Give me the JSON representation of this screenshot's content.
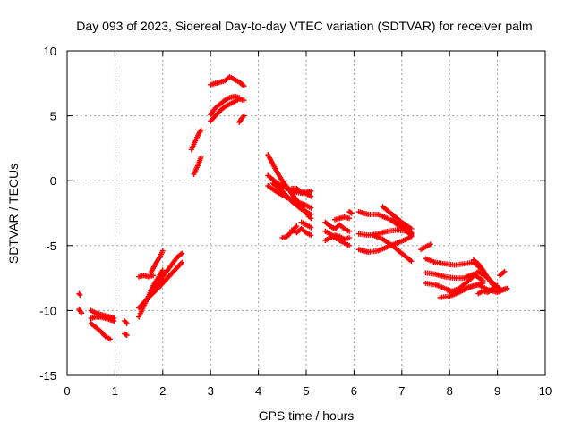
{
  "chart_data": {
    "type": "scatter",
    "title": "Day 093 of 2023, Sidereal Day-to-day VTEC variation (SDTVAR) for receiver palm",
    "xlabel": "GPS time / hours",
    "ylabel": "SDTVAR / TECUs",
    "xlim": [
      0,
      10
    ],
    "ylim": [
      -15,
      10
    ],
    "xticks": [
      0,
      1,
      2,
      3,
      4,
      5,
      6,
      7,
      8,
      9,
      10
    ],
    "yticks": [
      -15,
      -10,
      -5,
      0,
      5,
      10
    ],
    "grid": true,
    "marker": "plus",
    "color": "#ff0000",
    "tracks": [
      {
        "x": [
          0.25,
          0.27
        ],
        "y": [
          -8.7,
          -8.8
        ]
      },
      {
        "x": [
          0.25,
          0.3
        ],
        "y": [
          -9.9,
          -10.2
        ]
      },
      {
        "x": [
          0.5,
          0.6,
          0.7,
          0.8,
          0.9,
          0.98
        ],
        "y": [
          -10.0,
          -10.2,
          -10.3,
          -10.4,
          -10.5,
          -10.6
        ]
      },
      {
        "x": [
          0.5,
          0.6,
          0.7,
          0.8,
          0.9,
          0.98
        ],
        "y": [
          -10.6,
          -10.5,
          -10.5,
          -10.6,
          -10.7,
          -10.8
        ]
      },
      {
        "x": [
          0.5,
          0.6,
          0.7,
          0.8,
          0.9
        ],
        "y": [
          -11.0,
          -11.3,
          -11.6,
          -12.0,
          -12.2
        ]
      },
      {
        "x": [
          1.2,
          1.25
        ],
        "y": [
          -10.8,
          -11.0
        ]
      },
      {
        "x": [
          1.2,
          1.25
        ],
        "y": [
          -11.8,
          -11.9
        ]
      },
      {
        "x": [
          1.5,
          1.6,
          1.7,
          1.8,
          1.9,
          2.0
        ],
        "y": [
          -10.5,
          -9.7,
          -8.9,
          -8.1,
          -7.5,
          -6.9
        ]
      },
      {
        "x": [
          1.5,
          1.7,
          1.9,
          2.1,
          2.3,
          2.4
        ],
        "y": [
          -9.8,
          -9.0,
          -8.3,
          -7.5,
          -6.7,
          -6.3
        ]
      },
      {
        "x": [
          1.8,
          1.9,
          2.0,
          2.1,
          2.2,
          2.3,
          2.4
        ],
        "y": [
          -8.6,
          -8.0,
          -7.4,
          -6.9,
          -6.4,
          -5.9,
          -5.6
        ]
      },
      {
        "x": [
          1.5,
          1.6,
          1.7,
          1.8
        ],
        "y": [
          -7.4,
          -7.3,
          -7.4,
          -7.3
        ]
      },
      {
        "x": [
          1.75,
          1.85,
          1.95,
          2.0
        ],
        "y": [
          -7.1,
          -6.4,
          -5.8,
          -5.4
        ]
      },
      {
        "x": [
          2.6,
          2.65,
          2.7,
          2.75,
          2.8
        ],
        "y": [
          2.4,
          2.8,
          3.2,
          3.6,
          3.9
        ]
      },
      {
        "x": [
          2.65,
          2.7,
          2.75,
          2.8
        ],
        "y": [
          0.5,
          0.9,
          1.3,
          1.8
        ]
      },
      {
        "x": [
          3.0,
          3.1,
          3.2,
          3.3,
          3.4,
          3.5,
          3.6,
          3.7
        ],
        "y": [
          7.4,
          7.5,
          7.6,
          7.7,
          8.0,
          7.8,
          7.6,
          7.3
        ]
      },
      {
        "x": [
          3.0,
          3.1,
          3.2,
          3.3,
          3.4,
          3.5,
          3.6,
          3.7
        ],
        "y": [
          4.6,
          5.0,
          5.4,
          5.7,
          5.9,
          6.1,
          6.3,
          6.2
        ]
      },
      {
        "x": [
          3.0,
          3.1,
          3.2,
          3.3,
          3.4,
          3.5,
          3.6
        ],
        "y": [
          5.1,
          5.6,
          5.9,
          6.2,
          6.4,
          6.5,
          6.4
        ]
      },
      {
        "x": [
          3.6,
          3.65,
          3.7
        ],
        "y": [
          4.5,
          4.8,
          5.0
        ]
      },
      {
        "x": [
          4.2,
          4.3,
          4.4,
          4.5,
          4.6,
          4.7,
          4.8,
          4.9,
          5.0,
          5.1
        ],
        "y": [
          2.0,
          1.3,
          0.6,
          0.0,
          -0.5,
          -1.0,
          -1.5,
          -2.0,
          -2.5,
          -2.9
        ]
      },
      {
        "x": [
          4.2,
          4.4,
          4.6,
          4.8,
          5.0,
          5.1
        ],
        "y": [
          -0.4,
          -0.9,
          -1.3,
          -1.6,
          -1.9,
          -2.1
        ]
      },
      {
        "x": [
          4.2,
          4.4,
          4.6,
          4.8,
          5.0,
          5.1
        ],
        "y": [
          0.4,
          -0.2,
          -0.6,
          -0.9,
          -1.0,
          -1.2
        ]
      },
      {
        "x": [
          4.3,
          4.5,
          4.7,
          4.9,
          5.1
        ],
        "y": [
          -0.2,
          -0.8,
          -1.6,
          -2.2,
          -2.6
        ]
      },
      {
        "x": [
          4.7,
          4.8,
          4.9,
          5.0,
          5.1
        ],
        "y": [
          -0.6,
          -0.6,
          -0.9,
          -0.9,
          -0.8
        ]
      },
      {
        "x": [
          4.7,
          4.8,
          4.9,
          5.0,
          5.1
        ],
        "y": [
          -3.8,
          -4.0,
          -3.7,
          -4.0,
          -4.2
        ]
      },
      {
        "x": [
          4.9,
          5.0,
          5.1
        ],
        "y": [
          -3.2,
          -3.4,
          -3.6
        ]
      },
      {
        "x": [
          4.5,
          4.6,
          4.7,
          4.8
        ],
        "y": [
          -4.4,
          -4.3,
          -3.9,
          -3.5
        ]
      },
      {
        "x": [
          5.4,
          5.5,
          5.6,
          5.7,
          5.8,
          5.9
        ],
        "y": [
          -3.9,
          -4.1,
          -4.4,
          -4.6,
          -4.8,
          -5.0
        ]
      },
      {
        "x": [
          5.4,
          5.5,
          5.6,
          5.7,
          5.8,
          5.9
        ],
        "y": [
          -4.6,
          -4.4,
          -4.2,
          -4.3,
          -4.5,
          -4.4
        ]
      },
      {
        "x": [
          5.4,
          5.5,
          5.6,
          5.7,
          5.8,
          5.9
        ],
        "y": [
          -3.2,
          -3.5,
          -3.7,
          -3.4,
          -3.7,
          -3.9
        ]
      },
      {
        "x": [
          5.6,
          5.7,
          5.8,
          5.9
        ],
        "y": [
          -3.0,
          -2.9,
          -2.8,
          -2.9
        ]
      },
      {
        "x": [
          5.9,
          5.95
        ],
        "y": [
          -2.4,
          -2.5
        ]
      },
      {
        "x": [
          6.1,
          6.3,
          6.5,
          6.7,
          6.9,
          7.1,
          7.2
        ],
        "y": [
          -2.4,
          -2.6,
          -2.6,
          -2.9,
          -3.3,
          -3.7,
          -4.0
        ]
      },
      {
        "x": [
          6.1,
          6.3,
          6.5,
          6.7,
          6.9,
          7.1,
          7.2
        ],
        "y": [
          -4.1,
          -4.2,
          -4.1,
          -3.9,
          -3.8,
          -3.9,
          -4.2
        ]
      },
      {
        "x": [
          6.1,
          6.3,
          6.5,
          6.7,
          6.9,
          7.1,
          7.2
        ],
        "y": [
          -5.3,
          -5.5,
          -5.4,
          -5.1,
          -4.8,
          -4.5,
          -4.3
        ]
      },
      {
        "x": [
          6.4,
          6.6,
          6.8,
          7.0,
          7.2
        ],
        "y": [
          -4.2,
          -4.5,
          -5.0,
          -5.6,
          -6.2
        ]
      },
      {
        "x": [
          6.6,
          6.8,
          7.0,
          7.2
        ],
        "y": [
          -2.0,
          -2.6,
          -3.2,
          -3.7
        ]
      },
      {
        "x": [
          6.8,
          6.9,
          7.0,
          7.1,
          7.2
        ],
        "y": [
          -3.0,
          -3.4,
          -3.6,
          -3.9,
          -4.1
        ]
      },
      {
        "x": [
          7.4,
          7.5,
          7.6
        ],
        "y": [
          -5.3,
          -5.1,
          -4.9
        ]
      },
      {
        "x": [
          7.5,
          7.7,
          7.9,
          8.1,
          8.3,
          8.5,
          8.7
        ],
        "y": [
          -6.0,
          -6.3,
          -6.4,
          -6.5,
          -6.4,
          -6.3,
          -6.9
        ]
      },
      {
        "x": [
          7.5,
          7.7,
          7.9,
          8.1,
          8.3,
          8.5,
          8.7
        ],
        "y": [
          -7.1,
          -7.2,
          -7.4,
          -7.5,
          -7.5,
          -7.2,
          -7.7
        ]
      },
      {
        "x": [
          7.5,
          7.7,
          7.9,
          8.1,
          8.3,
          8.5,
          8.7
        ],
        "y": [
          -7.9,
          -8.0,
          -8.3,
          -8.6,
          -8.4,
          -8.1,
          -7.9
        ]
      },
      {
        "x": [
          7.8,
          8.0,
          8.2,
          8.4,
          8.6,
          8.8,
          9.0,
          9.2
        ],
        "y": [
          -9.0,
          -8.9,
          -8.6,
          -8.2,
          -8.0,
          -8.4,
          -8.6,
          -8.3
        ]
      },
      {
        "x": [
          8.0,
          8.2,
          8.4,
          8.6,
          8.8,
          9.0
        ],
        "y": [
          -8.6,
          -8.3,
          -7.7,
          -7.0,
          -7.5,
          -8.2
        ]
      },
      {
        "x": [
          8.5,
          8.6,
          8.7,
          8.8,
          8.9,
          9.0,
          9.1,
          9.2
        ],
        "y": [
          -6.1,
          -6.4,
          -6.9,
          -7.5,
          -8.0,
          -8.3,
          -8.4,
          -8.3
        ]
      },
      {
        "x": [
          8.6,
          8.7,
          8.8,
          8.9,
          9.0
        ],
        "y": [
          -8.7,
          -8.5,
          -8.6,
          -8.3,
          -8.1
        ]
      },
      {
        "x": [
          9.05,
          9.15
        ],
        "y": [
          -7.3,
          -7.0
        ]
      }
    ]
  }
}
